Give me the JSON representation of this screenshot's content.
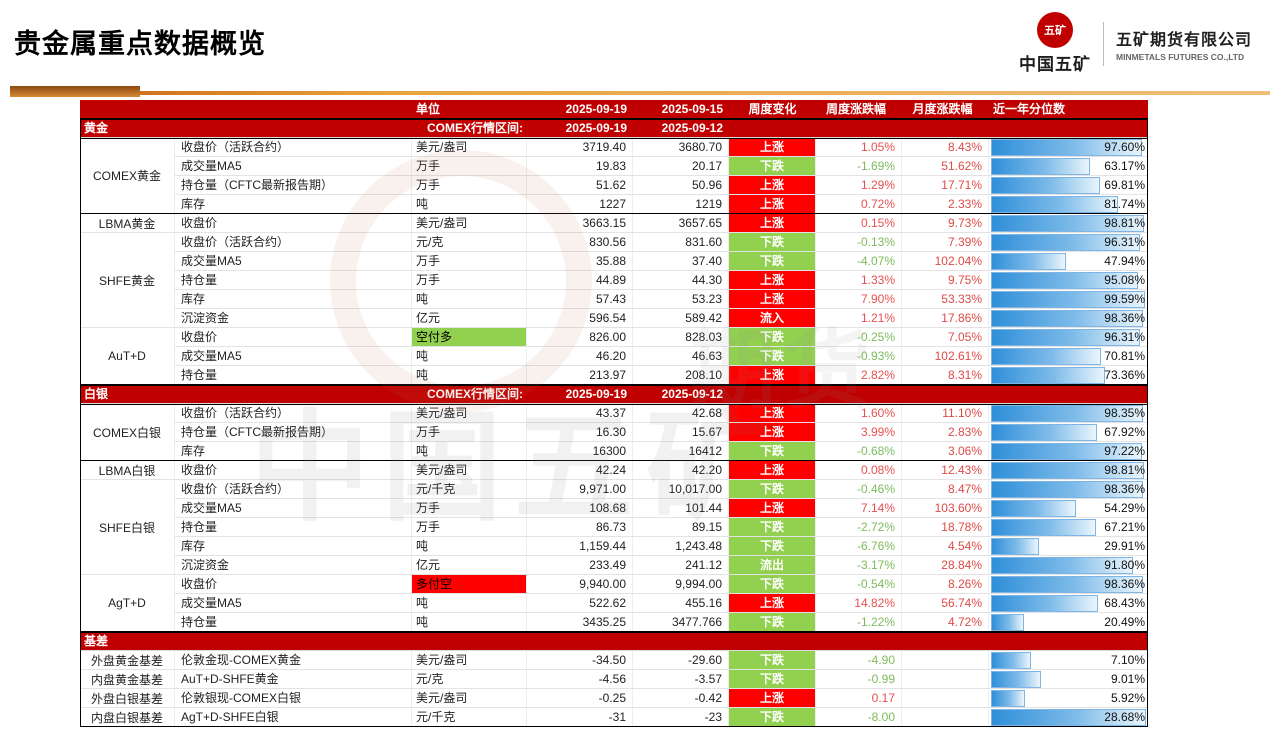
{
  "page": {
    "title": "贵金属重点数据概览"
  },
  "logo": {
    "emblem_text": "五矿",
    "org_cn": "中国五矿",
    "company_cn": "五矿期货有限公司",
    "company_en": "MINMETALS FUTURES CO.,LTD"
  },
  "watermark": {
    "text1": "中国五矿",
    "text2": "期货"
  },
  "colors": {
    "band_red": "#C00000",
    "up_red": "#FF0000",
    "down_green": "#92D050",
    "pos_text": "#E85050",
    "neg_text": "#7DBB5D",
    "monthly_text": "#DD4B45",
    "bar_left": "#2F8FD9",
    "bar_right": "#EAF5FC",
    "bar_border": "#7FB5E4"
  },
  "table": {
    "header": {
      "unit": "单位",
      "date1": "2025-09-19",
      "date2": "2025-09-15",
      "chg": "周度变化",
      "wk": "周度涨跌幅",
      "mo": "月度涨跌幅",
      "pct": "近一年分位数"
    },
    "sections": [
      {
        "band": {
          "name": "黄金",
          "range_label": "COMEX行情区间:",
          "date1": "2025-09-19",
          "date2": "2025-09-12"
        },
        "groups": [
          {
            "name": "COMEX黄金",
            "boxed": true,
            "rows": [
              {
                "ind": "收盘价（活跃合约）",
                "unit": "美元/盎司",
                "v1": "3719.40",
                "v2": "3680.70",
                "chg": "上涨",
                "cc": "r",
                "wk": "1.05%",
                "ws": "p",
                "mo": "8.43%",
                "pl": "97.60%",
                "bar": 97.6
              },
              {
                "ind": "成交量MA5",
                "unit": "万手",
                "v1": "19.83",
                "v2": "20.17",
                "chg": "下跌",
                "cc": "g",
                "wk": "-1.69%",
                "ws": "n",
                "mo": "51.62%",
                "pl": "63.17%",
                "bar": 63.17
              },
              {
                "ind": "持仓量（CFTC最新报告期）",
                "unit": "万手",
                "v1": "51.62",
                "v2": "50.96",
                "chg": "上涨",
                "cc": "r",
                "wk": "1.29%",
                "ws": "p",
                "mo": "17.71%",
                "pl": "69.81%",
                "bar": 69.81
              },
              {
                "ind": "库存",
                "unit": "吨",
                "v1": "1227",
                "v2": "1219",
                "chg": "上涨",
                "cc": "r",
                "wk": "0.72%",
                "ws": "p",
                "mo": "2.33%",
                "pl": "81.74%",
                "bar": 81.74
              }
            ]
          },
          {
            "name": "LBMA黄金",
            "rows": [
              {
                "ind": "收盘价",
                "unit": "美元/盎司",
                "v1": "3663.15",
                "v2": "3657.65",
                "chg": "上涨",
                "cc": "r",
                "wk": "0.15%",
                "ws": "p",
                "mo": "9.73%",
                "pl": "98.81%",
                "bar": 98.81
              }
            ]
          },
          {
            "name": "SHFE黄金",
            "rows": [
              {
                "ind": "收盘价（活跃合约）",
                "unit": "元/克",
                "v1": "830.56",
                "v2": "831.60",
                "chg": "下跌",
                "cc": "g",
                "wk": "-0.13%",
                "ws": "n",
                "mo": "7.39%",
                "pl": "96.31%",
                "bar": 96.31
              },
              {
                "ind": "成交量MA5",
                "unit": "万手",
                "v1": "35.88",
                "v2": "37.40",
                "chg": "下跌",
                "cc": "g",
                "wk": "-4.07%",
                "ws": "n",
                "mo": "102.04%",
                "pl": "47.94%",
                "bar": 47.94
              },
              {
                "ind": "持仓量",
                "unit": "万手",
                "v1": "44.89",
                "v2": "44.30",
                "chg": "上涨",
                "cc": "r",
                "wk": "1.33%",
                "ws": "p",
                "mo": "9.75%",
                "pl": "95.08%",
                "bar": 95.08
              },
              {
                "ind": "库存",
                "unit": "吨",
                "v1": "57.43",
                "v2": "53.23",
                "chg": "上涨",
                "cc": "r",
                "wk": "7.90%",
                "ws": "p",
                "mo": "53.33%",
                "pl": "99.59%",
                "bar": 99.59
              },
              {
                "ind": "沉淀资金",
                "unit": "亿元",
                "v1": "596.54",
                "v2": "589.42",
                "chg": "流入",
                "cc": "r",
                "wk": "1.21%",
                "ws": "p",
                "mo": "17.86%",
                "pl": "98.36%",
                "bar": 98.36
              }
            ]
          },
          {
            "name": "AuT+D",
            "rows": [
              {
                "ind": "收盘价",
                "unit": "空付多",
                "ubg": "g",
                "v1": "826.00",
                "v2": "828.03",
                "chg": "下跌",
                "cc": "g",
                "wk": "-0.25%",
                "ws": "n",
                "mo": "7.05%",
                "pl": "96.31%",
                "bar": 96.31
              },
              {
                "ind": "成交量MA5",
                "unit": "吨",
                "v1": "46.20",
                "v2": "46.63",
                "chg": "下跌",
                "cc": "g",
                "wk": "-0.93%",
                "ws": "n",
                "mo": "102.61%",
                "pl": "70.81%",
                "bar": 70.81
              },
              {
                "ind": "持仓量",
                "unit": "吨",
                "v1": "213.97",
                "v2": "208.10",
                "chg": "上涨",
                "cc": "r",
                "wk": "2.82%",
                "ws": "p",
                "mo": "8.31%",
                "pl": "73.36%",
                "bar": 73.36
              }
            ]
          }
        ]
      },
      {
        "band": {
          "name": "白银",
          "range_label": "COMEX行情区间:",
          "date1": "2025-09-19",
          "date2": "2025-09-12"
        },
        "groups": [
          {
            "name": "COMEX白银",
            "boxed": true,
            "rows": [
              {
                "ind": "收盘价（活跃合约）",
                "unit": "美元/盎司",
                "v1": "43.37",
                "v2": "42.68",
                "chg": "上涨",
                "cc": "r",
                "wk": "1.60%",
                "ws": "p",
                "mo": "11.10%",
                "pl": "98.35%",
                "bar": 98.35
              },
              {
                "ind": "持仓量（CFTC最新报告期）",
                "unit": "万手",
                "v1": "16.30",
                "v2": "15.67",
                "chg": "上涨",
                "cc": "r",
                "wk": "3.99%",
                "ws": "p",
                "mo": "2.83%",
                "pl": "67.92%",
                "bar": 67.92
              },
              {
                "ind": "库存",
                "unit": "吨",
                "v1": "16300",
                "v2": "16412",
                "chg": "下跌",
                "cc": "g",
                "wk": "-0.68%",
                "ws": "n",
                "mo": "3.06%",
                "pl": "97.22%",
                "bar": 97.22
              }
            ]
          },
          {
            "name": "LBMA白银",
            "rows": [
              {
                "ind": "收盘价",
                "unit": "美元/盎司",
                "v1": "42.24",
                "v2": "42.20",
                "chg": "上涨",
                "cc": "r",
                "wk": "0.08%",
                "ws": "p",
                "mo": "12.43%",
                "pl": "98.81%",
                "bar": 98.81
              }
            ]
          },
          {
            "name": "SHFE白银",
            "rows": [
              {
                "ind": "收盘价（活跃合约）",
                "unit": "元/千克",
                "v1": "9,971.00",
                "v2": "10,017.00",
                "chg": "下跌",
                "cc": "g",
                "wk": "-0.46%",
                "ws": "n",
                "mo": "8.47%",
                "pl": "98.36%",
                "bar": 98.36
              },
              {
                "ind": "成交量MA5",
                "unit": "万手",
                "v1": "108.68",
                "v2": "101.44",
                "chg": "上涨",
                "cc": "r",
                "wk": "7.14%",
                "ws": "p",
                "mo": "103.60%",
                "pl": "54.29%",
                "bar": 54.29
              },
              {
                "ind": "持仓量",
                "unit": "万手",
                "v1": "86.73",
                "v2": "89.15",
                "chg": "下跌",
                "cc": "g",
                "wk": "-2.72%",
                "ws": "n",
                "mo": "18.78%",
                "pl": "67.21%",
                "bar": 67.21
              },
              {
                "ind": "库存",
                "unit": "吨",
                "v1": "1,159.44",
                "v2": "1,243.48",
                "chg": "下跌",
                "cc": "g",
                "wk": "-6.76%",
                "ws": "n",
                "mo": "4.54%",
                "pl": "29.91%",
                "bar": 29.91
              },
              {
                "ind": "沉淀资金",
                "unit": "亿元",
                "v1": "233.49",
                "v2": "241.12",
                "chg": "流出",
                "cc": "g",
                "wk": "-3.17%",
                "ws": "n",
                "mo": "28.84%",
                "pl": "91.80%",
                "bar": 91.8
              }
            ]
          },
          {
            "name": "AgT+D",
            "rows": [
              {
                "ind": "收盘价",
                "unit": "多付空",
                "ubg": "r",
                "v1": "9,940.00",
                "v2": "9,994.00",
                "chg": "下跌",
                "cc": "g",
                "wk": "-0.54%",
                "ws": "n",
                "mo": "8.26%",
                "pl": "98.36%",
                "bar": 98.36
              },
              {
                "ind": "成交量MA5",
                "unit": "吨",
                "v1": "522.62",
                "v2": "455.16",
                "chg": "上涨",
                "cc": "r",
                "wk": "14.82%",
                "ws": "p",
                "mo": "56.74%",
                "pl": "68.43%",
                "bar": 68.43
              },
              {
                "ind": "持仓量",
                "unit": "吨",
                "v1": "3435.25",
                "v2": "3477.766",
                "chg": "下跌",
                "cc": "g",
                "wk": "-1.22%",
                "ws": "n",
                "mo": "4.72%",
                "pl": "20.49%",
                "bar": 20.49
              }
            ]
          }
        ]
      },
      {
        "band": {
          "name": "基差"
        },
        "groups": [
          {
            "name": "外盘黄金基差",
            "rows": [
              {
                "ind": "伦敦金现-COMEX黄金",
                "unit": "美元/盎司",
                "v1": "-34.50",
                "v2": "-29.60",
                "chg": "下跌",
                "cc": "g",
                "wk": "-4.90",
                "ws": "n",
                "mo": "",
                "pl": "7.10%",
                "bar": 24.8
              }
            ]
          },
          {
            "name": "内盘黄金基差",
            "rows": [
              {
                "ind": "AuT+D-SHFE黄金",
                "unit": "元/克",
                "v1": "-4.56",
                "v2": "-3.57",
                "chg": "下跌",
                "cc": "g",
                "wk": "-0.99",
                "ws": "n",
                "mo": "",
                "pl": "9.01%",
                "bar": 31.4
              }
            ]
          },
          {
            "name": "外盘白银基差",
            "rows": [
              {
                "ind": "伦敦银现-COMEX白银",
                "unit": "美元/盎司",
                "v1": "-0.25",
                "v2": "-0.42",
                "chg": "上涨",
                "cc": "r",
                "wk": "0.17",
                "ws": "p",
                "mo": "",
                "pl": "5.92%",
                "bar": 20.6
              }
            ]
          },
          {
            "name": "内盘白银基差",
            "rows": [
              {
                "ind": "AgT+D-SHFE白银",
                "unit": "元/千克",
                "v1": "-31",
                "v2": "-23",
                "chg": "下跌",
                "cc": "g",
                "wk": "-8.00",
                "ws": "n",
                "mo": "",
                "pl": "28.68%",
                "bar": 100
              }
            ]
          }
        ]
      }
    ]
  }
}
